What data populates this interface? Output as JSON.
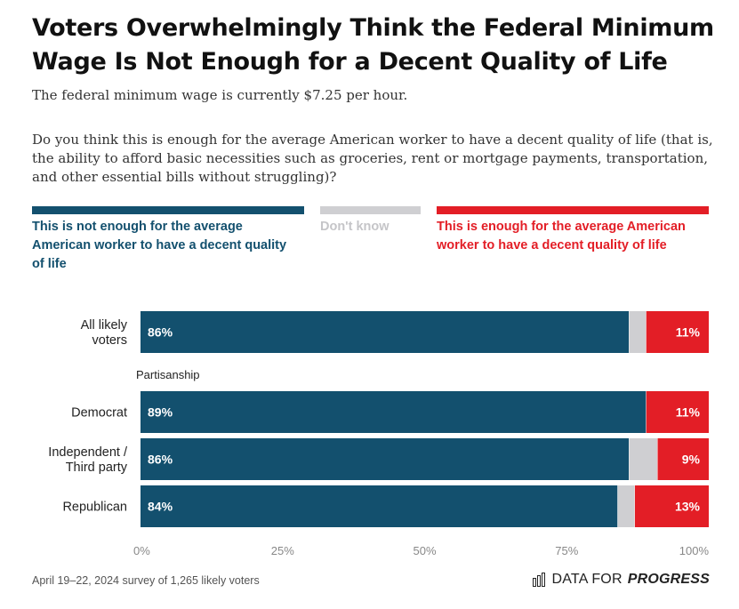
{
  "title": "Voters Overwhelmingly Think the Federal Minimum Wage Is Not Enough for a Decent Quality of Life",
  "subtitle": "The federal minimum wage is currently $7.25 per hour.",
  "question": "Do you think this is enough for the average American worker to have a decent quality of life (that is, the ability to afford basic necessities such as groceries, rent or mortgage payments, transportation, and other essential bills without struggling)?",
  "colors": {
    "not_enough": "#13506e",
    "dont_know": "#cfcfd2",
    "enough": "#e31e26"
  },
  "legend": {
    "not_enough": "This is not enough for the average American worker to have a decent quality of life",
    "dont_know": "Don't know",
    "enough": "This is enough for the average American worker to have a decent quality of life"
  },
  "chart_data": {
    "type": "bar",
    "orientation": "horizontal",
    "stacked": true,
    "xlim": [
      0,
      100
    ],
    "xticks": [
      "0%",
      "25%",
      "50%",
      "75%",
      "100%"
    ],
    "group_label": "Partisanship",
    "categories": [
      "All likely voters",
      "Democrat",
      "Independent / Third party",
      "Republican"
    ],
    "series": [
      {
        "name": "This is not enough for the average American worker to have a decent quality of life",
        "values": [
          86,
          89,
          86,
          84
        ],
        "labels": [
          "86%",
          "89%",
          "86%",
          "84%"
        ]
      },
      {
        "name": "Don't know",
        "values": [
          3,
          0,
          5,
          3
        ]
      },
      {
        "name": "This is enough for the average American worker to have a decent quality of life",
        "values": [
          11,
          11,
          9,
          13
        ],
        "labels": [
          "11%",
          "11%",
          "9%",
          "13%"
        ]
      }
    ]
  },
  "footer": {
    "note": "April 19–22, 2024 survey of 1,265 likely voters",
    "logo_part1": "DATA FOR",
    "logo_part2": "PROGRESS"
  }
}
